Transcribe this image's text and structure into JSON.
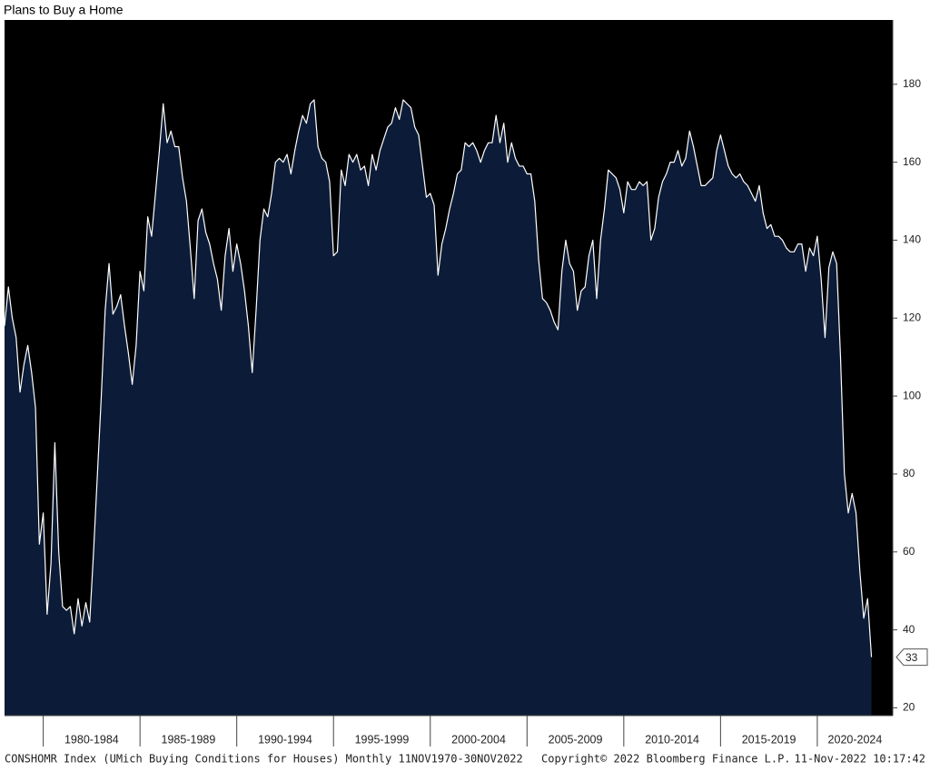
{
  "chart_data": {
    "type": "area",
    "title": "Plans to Buy a Home",
    "footer_left": "CONSHOMR Index (UMich Buying Conditions for Houses)  Monthly 11NOV1970-30NOV2022",
    "footer_mid": "Copyright© 2022 Bloomberg Finance L.P.",
    "footer_right": "11-Nov-2022 10:17:42",
    "fill_color": "#0c1c38",
    "line_color": "#ffffff",
    "background": "#000000",
    "xlim": [
      1978,
      2023.9
    ],
    "xticks": [
      {
        "value": 1980,
        "label": "1980-1984"
      },
      {
        "value": 1985,
        "label": "1985-1989"
      },
      {
        "value": 1990,
        "label": "1990-1994"
      },
      {
        "value": 1995,
        "label": "1995-1999"
      },
      {
        "value": 2000,
        "label": "2000-2004"
      },
      {
        "value": 2005,
        "label": "2005-2009"
      },
      {
        "value": 2010,
        "label": "2010-2014"
      },
      {
        "value": 2015,
        "label": "2015-2019"
      },
      {
        "value": 2020,
        "label": "2020-2024"
      }
    ],
    "ylim": [
      18,
      196.5
    ],
    "yticks": [
      20,
      40,
      60,
      80,
      100,
      120,
      140,
      160,
      180
    ],
    "x": [
      1978,
      1978.2,
      1978.4,
      1978.6,
      1978.8,
      1979,
      1979.2,
      1979.4,
      1979.6,
      1979.8,
      1980,
      1980.2,
      1980.4,
      1980.6,
      1980.8,
      1981,
      1981.2,
      1981.4,
      1981.6,
      1981.8,
      1982,
      1982.2,
      1982.4,
      1982.6,
      1982.8,
      1983,
      1983.2,
      1983.4,
      1983.6,
      1983.8,
      1984,
      1984.2,
      1984.4,
      1984.6,
      1984.8,
      1985,
      1985.2,
      1985.4,
      1985.6,
      1985.8,
      1986,
      1986.2,
      1986.4,
      1986.6,
      1986.8,
      1987,
      1987.2,
      1987.4,
      1987.6,
      1987.8,
      1988,
      1988.2,
      1988.4,
      1988.6,
      1988.8,
      1989,
      1989.2,
      1989.4,
      1989.6,
      1989.8,
      1990,
      1990.2,
      1990.4,
      1990.6,
      1990.8,
      1991,
      1991.2,
      1991.4,
      1991.6,
      1991.8,
      1992,
      1992.2,
      1992.4,
      1992.6,
      1992.8,
      1993,
      1993.2,
      1993.4,
      1993.6,
      1993.8,
      1994,
      1994.2,
      1994.4,
      1994.6,
      1994.8,
      1995,
      1995.2,
      1995.4,
      1995.6,
      1995.8,
      1996,
      1996.2,
      1996.4,
      1996.6,
      1996.8,
      1997,
      1997.2,
      1997.4,
      1997.6,
      1997.8,
      1998,
      1998.2,
      1998.4,
      1998.6,
      1998.8,
      1999,
      1999.2,
      1999.4,
      1999.6,
      1999.8,
      2000,
      2000.2,
      2000.4,
      2000.6,
      2000.8,
      2001,
      2001.2,
      2001.4,
      2001.6,
      2001.8,
      2002,
      2002.2,
      2002.4,
      2002.6,
      2002.8,
      2003,
      2003.2,
      2003.4,
      2003.6,
      2003.8,
      2004,
      2004.2,
      2004.4,
      2004.6,
      2004.8,
      2005,
      2005.2,
      2005.4,
      2005.6,
      2005.8,
      2006,
      2006.2,
      2006.4,
      2006.6,
      2006.8,
      2007,
      2007.2,
      2007.4,
      2007.6,
      2007.8,
      2008,
      2008.2,
      2008.4,
      2008.6,
      2008.8,
      2009,
      2009.2,
      2009.4,
      2009.6,
      2009.8,
      2010,
      2010.2,
      2010.4,
      2010.6,
      2010.8,
      2011,
      2011.2,
      2011.4,
      2011.6,
      2011.8,
      2012,
      2012.2,
      2012.4,
      2012.6,
      2012.8,
      2013,
      2013.2,
      2013.4,
      2013.6,
      2013.8,
      2014,
      2014.2,
      2014.4,
      2014.6,
      2014.8,
      2015,
      2015.2,
      2015.4,
      2015.6,
      2015.8,
      2016,
      2016.2,
      2016.4,
      2016.6,
      2016.8,
      2017,
      2017.2,
      2017.4,
      2017.6,
      2017.8,
      2018,
      2018.2,
      2018.4,
      2018.6,
      2018.8,
      2019,
      2019.2,
      2019.4,
      2019.6,
      2019.8,
      2020,
      2020.2,
      2020.4,
      2020.6,
      2020.8,
      2021,
      2021.2,
      2021.4,
      2021.6,
      2021.8,
      2022,
      2022.2,
      2022.4,
      2022.6,
      2022.8
    ],
    "values": [
      118,
      128,
      120,
      115,
      101,
      108,
      113,
      106,
      97,
      62,
      70,
      44,
      57,
      88,
      60,
      46,
      45,
      46,
      39,
      48,
      41,
      47,
      42,
      60,
      80,
      100,
      122,
      134,
      121,
      123,
      126,
      118,
      111,
      103,
      113,
      132,
      127,
      146,
      141,
      152,
      163,
      175,
      165,
      168,
      164,
      164,
      156,
      150,
      138,
      125,
      145,
      148,
      142,
      139,
      134,
      130,
      122,
      136,
      143,
      132,
      139,
      134,
      127,
      118,
      106,
      122,
      140,
      148,
      146,
      152,
      160,
      161,
      160,
      162,
      157,
      163,
      168,
      172,
      170,
      175,
      176,
      164,
      161,
      160,
      155,
      136,
      137,
      158,
      154,
      162,
      160,
      162,
      158,
      159,
      154,
      162,
      158,
      163,
      166,
      169,
      170,
      174,
      171,
      176,
      175,
      174,
      169,
      167,
      159,
      151,
      152,
      149,
      131,
      139,
      143,
      148,
      152,
      157,
      158,
      165,
      164,
      165,
      163,
      160,
      163,
      165,
      165,
      172,
      165,
      170,
      160,
      165,
      161,
      159,
      159,
      157,
      157,
      150,
      135,
      125,
      124,
      122,
      119,
      117,
      132,
      140,
      134,
      132,
      122,
      127,
      128,
      136,
      140,
      125,
      140,
      148,
      158,
      157,
      156,
      153,
      147,
      155,
      153,
      153,
      155,
      154,
      155,
      140,
      143,
      151,
      155,
      157,
      160,
      160,
      163,
      159,
      161,
      168,
      164,
      159,
      154,
      154,
      155,
      156,
      163,
      167,
      163,
      159,
      157,
      156,
      157,
      155,
      154,
      152,
      150,
      154,
      147,
      143,
      144,
      141,
      141,
      140,
      138,
      137,
      137,
      139,
      139,
      132,
      138,
      136,
      141,
      130,
      115,
      133,
      137,
      134,
      110,
      80,
      70,
      75,
      70,
      55,
      43,
      48,
      33
    ]
  }
}
